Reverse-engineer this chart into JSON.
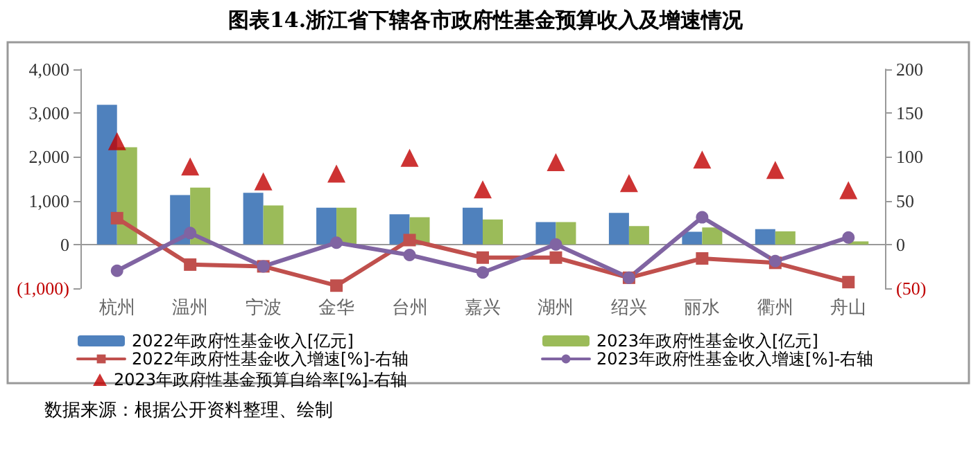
{
  "chart_data": {
    "type": "bar",
    "title": "图表14.浙江省下辖各市政府性基金预算收入及增速情况",
    "categories": [
      "杭州",
      "温州",
      "宁波",
      "金华",
      "台州",
      "嘉兴",
      "湖州",
      "绍兴",
      "丽水",
      "衢州",
      "舟山"
    ],
    "series": [
      {
        "name": "2022年政府性基金收入[亿元]",
        "color": "#4f81bd",
        "values": [
          3190,
          1130,
          1180,
          840,
          690,
          840,
          510,
          720,
          290,
          350,
          null
        ]
      },
      {
        "name": "2023年政府性基金收入[亿元]",
        "color": "#9bbb59",
        "values": [
          2220,
          1300,
          890,
          840,
          620,
          570,
          510,
          420,
          390,
          300,
          70
        ]
      },
      {
        "name": "2022年政府性基金收入增速[%]-右轴",
        "type": "line",
        "axis": "y2",
        "marker": "square",
        "color": "#c0504d",
        "values": [
          30,
          -23,
          -25,
          -47,
          5,
          -15,
          -15,
          -38,
          -16,
          -21,
          -43
        ]
      },
      {
        "name": "2023年政府性基金收入增速[%]-右轴",
        "type": "line",
        "axis": "y2",
        "marker": "circle",
        "color": "#8064a2",
        "values": [
          -30,
          13,
          -25,
          2,
          -12,
          -32,
          0,
          -38,
          31,
          -19,
          8
        ]
      },
      {
        "name": "2023年政府性基金预算自给率[%]-右轴",
        "type": "scatter",
        "axis": "y2",
        "marker": "triangle",
        "color": "#c00000",
        "values": [
          118,
          89,
          72,
          81,
          99,
          63,
          94,
          70,
          97,
          85,
          62
        ]
      }
    ],
    "ylim": [
      -1000,
      4000
    ],
    "yticks": [
      {
        "value": -1000,
        "label": "(1,000)"
      },
      {
        "value": 0,
        "label": "0"
      },
      {
        "value": 1000,
        "label": "1,000"
      },
      {
        "value": 2000,
        "label": "2,000"
      },
      {
        "value": 3000,
        "label": "3,000"
      },
      {
        "value": 4000,
        "label": "4,000"
      }
    ],
    "y2lim": [
      -50,
      200
    ],
    "y2ticks": [
      {
        "value": -50,
        "label": "(50)"
      },
      0,
      50,
      100,
      150,
      200
    ],
    "legend": "bottom",
    "annotations": [
      "数据来源：根据公开资料整理、绘制"
    ]
  }
}
